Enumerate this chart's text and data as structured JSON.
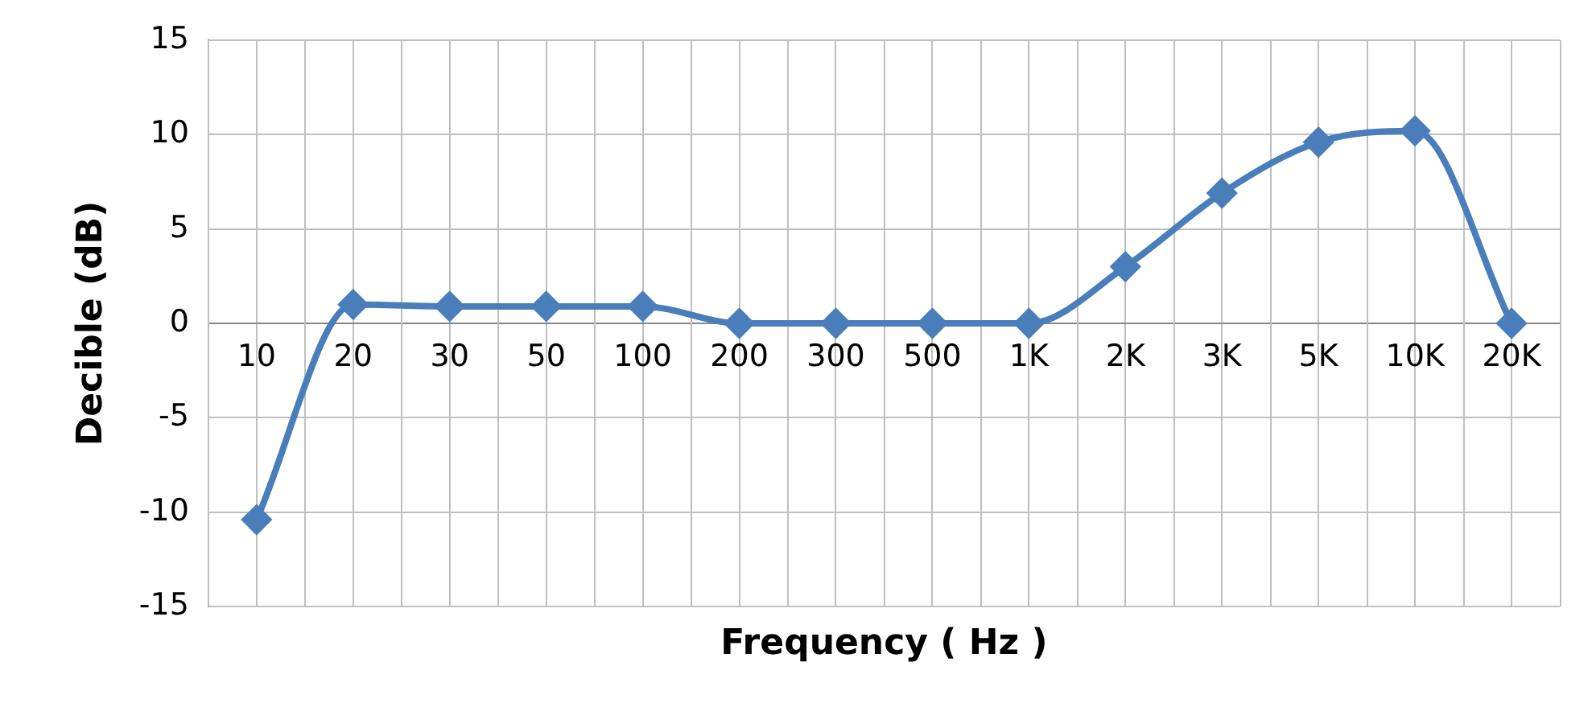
{
  "chart_data": {
    "type": "line",
    "xlabel": "Frequency ( Hz )",
    "ylabel": "Decible (dB)",
    "categories": [
      "10",
      "20",
      "30",
      "50",
      "100",
      "200",
      "300",
      "500",
      "1K",
      "2K",
      "3K",
      "5K",
      "10K",
      "20K"
    ],
    "series": [
      {
        "color": "#4a7ebb",
        "values": [
          -10.4,
          1,
          0.9,
          0.9,
          0.9,
          0,
          0,
          0,
          0,
          3,
          6.9,
          9.6,
          10.2,
          0
        ]
      }
    ],
    "ylim": [
      -15,
      15
    ],
    "yticks": [
      -15,
      -10,
      -5,
      0,
      5,
      10,
      15
    ],
    "grid": true,
    "legend": false,
    "marker": "diamond",
    "line_style": "solid"
  }
}
